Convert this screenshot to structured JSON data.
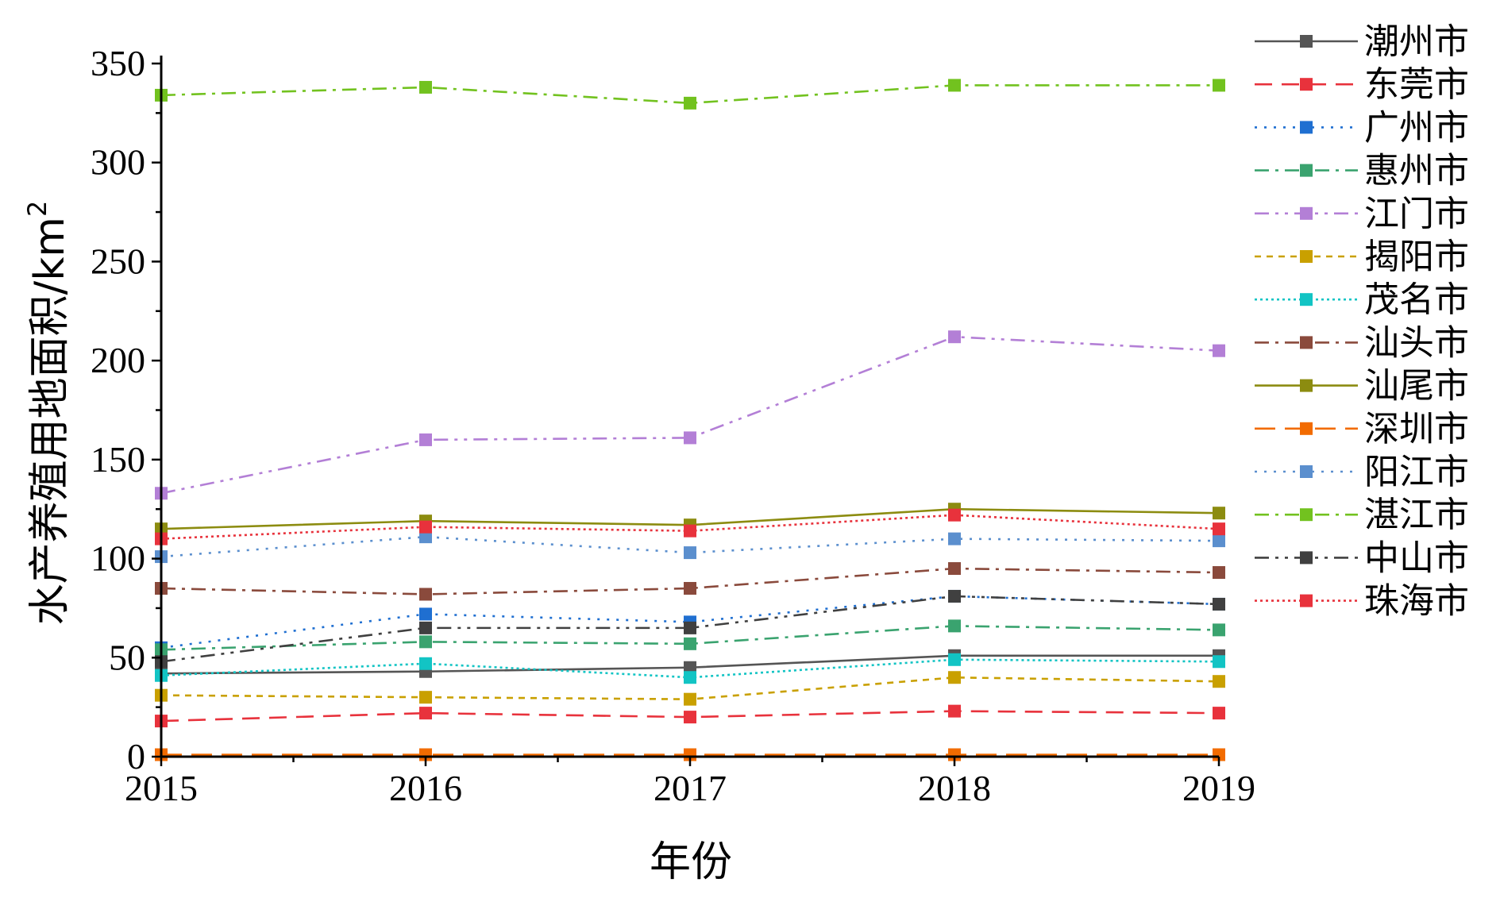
{
  "chart_data": {
    "type": "line",
    "title": "",
    "xlabel": "年份",
    "ylabel": "水产养殖用地面积/km",
    "ylabel_sup": "2",
    "x": [
      "2015",
      "2016",
      "2017",
      "2018",
      "2019"
    ],
    "xticks": [
      "2015",
      "2016",
      "2017",
      "2018",
      "2019"
    ],
    "yticks": [
      "0",
      "50",
      "100",
      "150",
      "200",
      "250",
      "300",
      "350"
    ],
    "ylim": [
      0,
      350
    ],
    "grid": false,
    "legend_position": "right",
    "series": [
      {
        "name": "潮州市",
        "color": "#555555",
        "dash": "solid",
        "values": [
          42,
          43,
          45,
          51,
          51
        ]
      },
      {
        "name": "东莞市",
        "color": "#e8323c",
        "dash": "dash",
        "values": [
          18,
          22,
          20,
          23,
          22
        ]
      },
      {
        "name": "广州市",
        "color": "#1f6fd1",
        "dash": "dot",
        "values": [
          55,
          72,
          68,
          81,
          77
        ]
      },
      {
        "name": "惠州市",
        "color": "#3aa36f",
        "dash": "dashdot",
        "values": [
          54,
          58,
          57,
          66,
          64
        ]
      },
      {
        "name": "江门市",
        "color": "#b37fd6",
        "dash": "dashdotdot",
        "values": [
          133,
          160,
          161,
          212,
          205
        ]
      },
      {
        "name": "揭阳市",
        "color": "#c9a000",
        "dash": "shortdash",
        "values": [
          31,
          30,
          29,
          40,
          38
        ]
      },
      {
        "name": "茂名市",
        "color": "#12c4c4",
        "dash": "shortdot",
        "values": [
          41,
          47,
          40,
          49,
          48
        ]
      },
      {
        "name": "汕头市",
        "color": "#8a4a3c",
        "dash": "dashdot",
        "values": [
          85,
          82,
          85,
          95,
          93
        ]
      },
      {
        "name": "汕尾市",
        "color": "#8c8c10",
        "dash": "solid",
        "values": [
          115,
          119,
          117,
          125,
          123
        ]
      },
      {
        "name": "深圳市",
        "color": "#f26b00",
        "dash": "longdash",
        "values": [
          1,
          1,
          1,
          1,
          1
        ]
      },
      {
        "name": "阳江市",
        "color": "#5b8fce",
        "dash": "dot",
        "values": [
          101,
          111,
          103,
          110,
          109
        ]
      },
      {
        "name": "湛江市",
        "color": "#72c21f",
        "dash": "dashdot",
        "values": [
          334,
          338,
          330,
          339,
          339
        ]
      },
      {
        "name": "中山市",
        "color": "#404040",
        "dash": "dashdotdot",
        "values": [
          48,
          65,
          65,
          81,
          77
        ]
      },
      {
        "name": "珠海市",
        "color": "#e8323c",
        "dash": "shortdot",
        "values": [
          110,
          116,
          114,
          122,
          115
        ]
      }
    ]
  }
}
